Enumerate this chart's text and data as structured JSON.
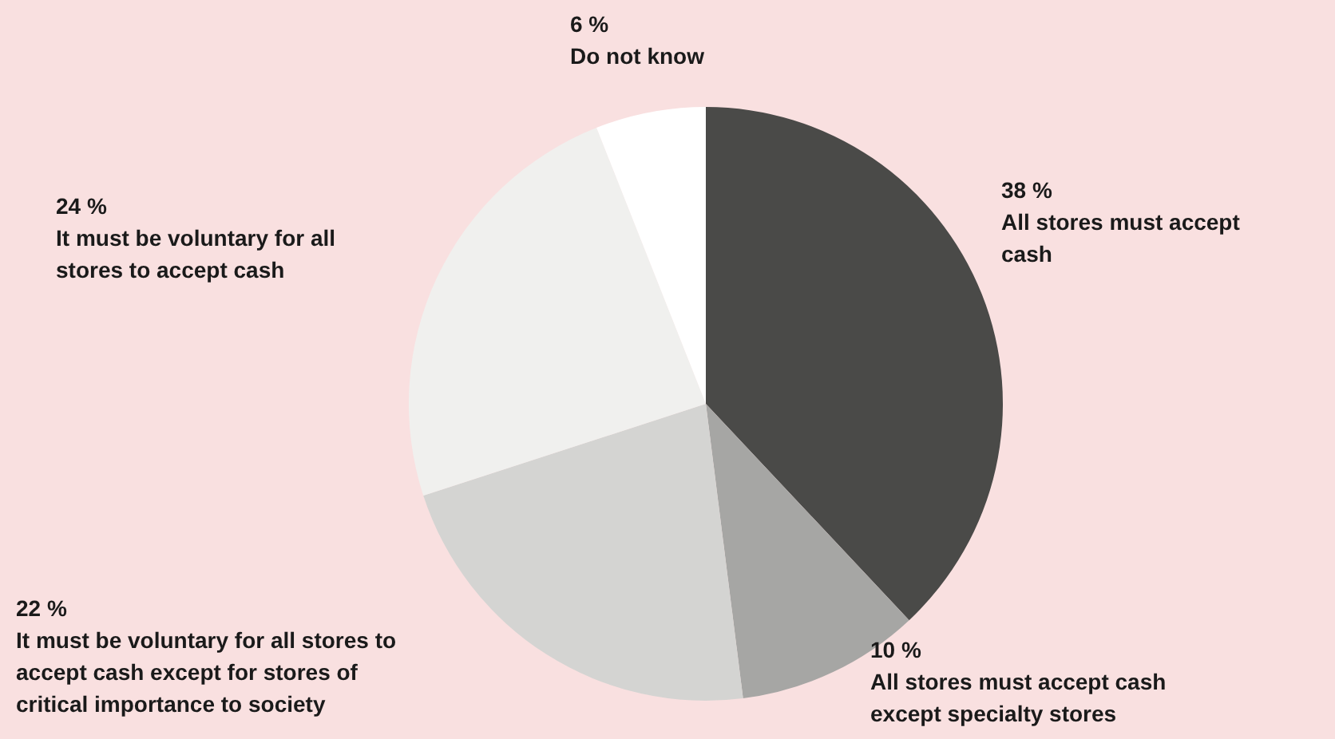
{
  "chart_data": {
    "type": "pie",
    "categories": [
      "All stores must accept cash",
      "All stores must accept cash except specialty stores",
      "It must be voluntary for all stores to accept cash except for stores of critical importance to society",
      "It must be voluntary for all stores to accept cash",
      "Do not know"
    ],
    "values": [
      38,
      10,
      22,
      24,
      6
    ],
    "colors": [
      "#4a4a48",
      "#a6a6a4",
      "#d4d4d2",
      "#f0f0ee",
      "#ffffff"
    ],
    "value_labels": [
      "38 %",
      "10 %",
      "22 %",
      "24 %",
      "6 %"
    ]
  }
}
